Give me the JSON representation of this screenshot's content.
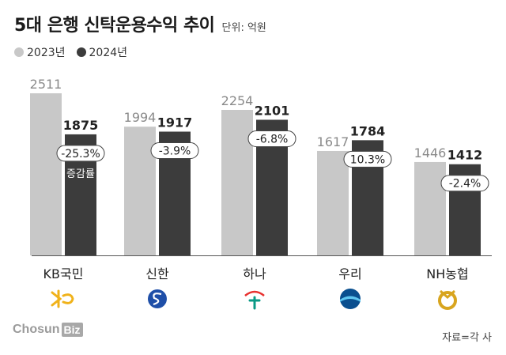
{
  "title": "5대 은행 신탁운용수익 추이",
  "unit": "단위: 억원",
  "legend": [
    {
      "label": "2023년",
      "color": "#c8c8c8"
    },
    {
      "label": "2024년",
      "color": "#3c3c3c"
    }
  ],
  "rate_label": "증감률",
  "source": "자료=각 사",
  "brand": {
    "name": "ChosunBiz",
    "main": "Chosun",
    "box": "Biz"
  },
  "bank_icons": [
    "kb-star-icon",
    "shinhan-logo-icon",
    "hana-logo-icon",
    "woori-logo-icon",
    "nh-logo-icon"
  ],
  "chart_data": {
    "type": "bar",
    "categories": [
      "KB국민",
      "신한",
      "하나",
      "우리",
      "NH농협"
    ],
    "series": [
      {
        "name": "2023년",
        "values": [
          2511,
          1994,
          2254,
          1617,
          1446
        ]
      },
      {
        "name": "2024년",
        "values": [
          1875,
          1917,
          2101,
          1784,
          1412
        ]
      }
    ],
    "rates": [
      "-25.3%",
      "-3.9%",
      "-6.8%",
      "10.3%",
      "-2.4%"
    ],
    "ylim": [
      0,
      2511
    ]
  }
}
